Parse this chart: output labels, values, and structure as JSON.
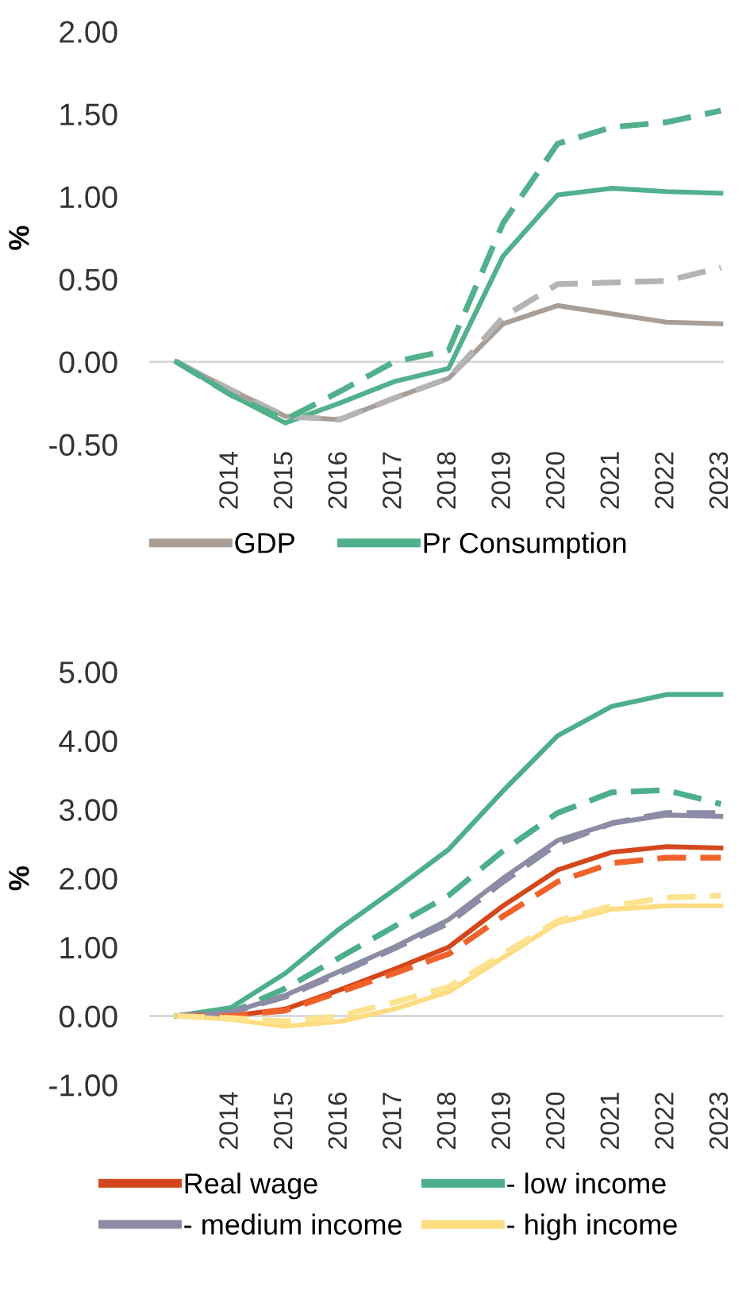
{
  "chart_data": [
    {
      "type": "line",
      "ylabel": "%",
      "categories": [
        null,
        "2014",
        "2015",
        "2016",
        "2017",
        "2018",
        "2019",
        "2020",
        "2021",
        "2022",
        "2023"
      ],
      "ylim": [
        -0.5,
        2.0
      ],
      "yticks": [
        {
          "value": -0.5,
          "label": "-0.50"
        },
        {
          "value": 0,
          "label": "0.00"
        },
        {
          "value": 0.5,
          "label": "0.50"
        },
        {
          "value": 1.0,
          "label": "1.00"
        },
        {
          "value": 1.5,
          "label": "1.50"
        },
        {
          "value": 2.0,
          "label": "2.00"
        }
      ],
      "grid": false,
      "legend": "bottom",
      "ref_lines": [
        {
          "axis": "y",
          "value": 0,
          "color": "#d9d9d9"
        }
      ],
      "series": [
        {
          "name": "GDP",
          "color": "#a89e96",
          "line_style": "solid",
          "values": [
            0,
            -0.17,
            -0.33,
            -0.35,
            -0.22,
            -0.1,
            0.23,
            0.34,
            0.29,
            0.24,
            0.23
          ]
        },
        {
          "name": "Pr Consumption",
          "color": "#52b08c",
          "line_style": "solid",
          "values": [
            0,
            -0.2,
            -0.37,
            -0.25,
            -0.12,
            -0.04,
            0.64,
            1.01,
            1.05,
            1.03,
            1.02
          ]
        },
        {
          "color": "#b4b4b4",
          "line_style": "dashed",
          "values": [
            0,
            -0.17,
            -0.33,
            -0.35,
            -0.22,
            -0.1,
            0.27,
            0.47,
            0.48,
            0.49,
            0.57
          ]
        },
        {
          "color": "#52b08c",
          "line_style": "dashed",
          "values": [
            0,
            -0.2,
            -0.35,
            -0.18,
            0.0,
            0.07,
            0.84,
            1.32,
            1.42,
            1.45,
            1.52
          ]
        }
      ]
    },
    {
      "type": "line",
      "ylabel": "%",
      "categories": [
        null,
        "2014",
        "2015",
        "2016",
        "2017",
        "2018",
        "2019",
        "2020",
        "2021",
        "2022",
        "2023"
      ],
      "ylim": [
        -1.0,
        5.0
      ],
      "yticks": [
        {
          "value": -1,
          "label": "-1.00"
        },
        {
          "value": 0,
          "label": "0.00"
        },
        {
          "value": 1,
          "label": "1.00"
        },
        {
          "value": 2,
          "label": "2.00"
        },
        {
          "value": 3,
          "label": "3.00"
        },
        {
          "value": 4,
          "label": "4.00"
        },
        {
          "value": 5,
          "label": "5.00"
        }
      ],
      "grid": false,
      "legend": "bottom",
      "ref_lines": [
        {
          "axis": "y",
          "value": 0,
          "color": "#d9d9d9"
        }
      ],
      "series": [
        {
          "name": "Real wage",
          "color": "#d4471c",
          "line_style": "solid",
          "values": [
            0,
            0.0,
            0.1,
            0.38,
            0.68,
            1.0,
            1.6,
            2.12,
            2.38,
            2.46,
            2.44
          ]
        },
        {
          "name": "- low income",
          "color": "#4daf8a",
          "line_style": "solid",
          "values": [
            0,
            0.12,
            0.62,
            1.27,
            1.83,
            2.42,
            3.27,
            4.07,
            4.5,
            4.67,
            4.67
          ]
        },
        {
          "name": "- medium income",
          "color": "#8c8ca6",
          "line_style": "solid",
          "values": [
            0,
            0.05,
            0.3,
            0.65,
            1.0,
            1.4,
            2.0,
            2.55,
            2.8,
            2.92,
            2.9
          ]
        },
        {
          "name": "- high income",
          "color": "#fddc82",
          "line_style": "solid",
          "values": [
            0,
            -0.05,
            -0.15,
            -0.08,
            0.1,
            0.35,
            0.85,
            1.35,
            1.55,
            1.6,
            1.6
          ]
        },
        {
          "color": "#4daf8a",
          "line_style": "dashed",
          "values": [
            0,
            0.05,
            0.4,
            0.85,
            1.3,
            1.75,
            2.4,
            2.95,
            3.25,
            3.28,
            3.08
          ]
        },
        {
          "color": "#8c8ca6",
          "line_style": "dashed",
          "values": [
            0,
            0.05,
            0.28,
            0.62,
            0.98,
            1.35,
            1.95,
            2.5,
            2.8,
            2.95,
            2.95
          ]
        },
        {
          "color": "#f0622a",
          "line_style": "dashed",
          "values": [
            0,
            0.0,
            0.08,
            0.35,
            0.62,
            0.9,
            1.45,
            1.95,
            2.22,
            2.3,
            2.3
          ]
        },
        {
          "color": "#fde28f",
          "line_style": "dashed",
          "values": [
            0,
            -0.03,
            -0.08,
            0.0,
            0.2,
            0.42,
            0.9,
            1.38,
            1.6,
            1.72,
            1.75
          ]
        }
      ]
    }
  ]
}
